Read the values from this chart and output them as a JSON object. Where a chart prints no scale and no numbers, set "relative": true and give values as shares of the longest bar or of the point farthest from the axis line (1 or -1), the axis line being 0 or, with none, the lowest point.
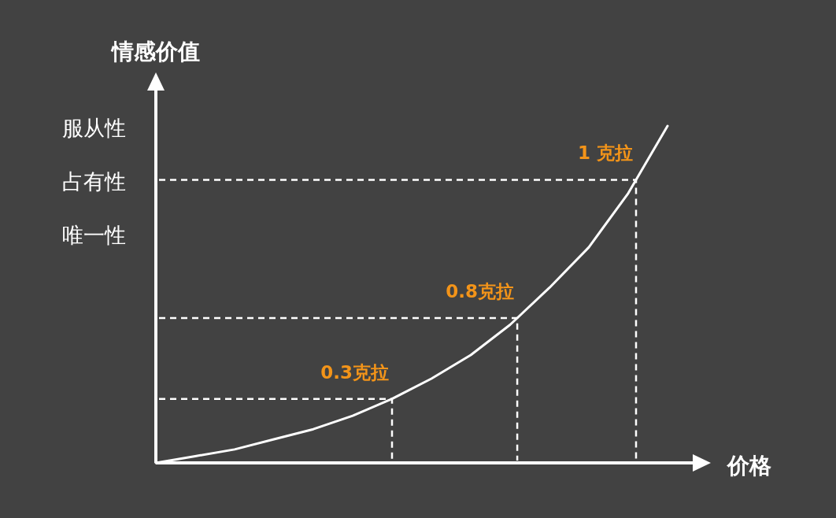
{
  "chart_data": {
    "type": "line",
    "relative": true,
    "xlabel": "价格",
    "ylabel": "情感价值",
    "categories": [
      null,
      null,
      null,
      null,
      null,
      null,
      null,
      null,
      null,
      null,
      null,
      null,
      null,
      null
    ],
    "series": [
      {
        "color": "#ffffff",
        "values": [
          0,
          0.02,
          0.04,
          0.07,
          0.1,
          0.14,
          0.19,
          0.25,
          0.32,
          0.41,
          0.52,
          0.64,
          0.8,
          1.0
        ]
      }
    ],
    "annotations": [
      "服从性",
      "占有性",
      "唯一性"
    ],
    "ref_lines": [
      {
        "axis": "y",
        "value": 0.19,
        "label": "0.3克拉",
        "line_style": "dashed"
      },
      {
        "axis": "y",
        "value": 0.43,
        "label": "0.8克拉",
        "line_style": "dashed"
      },
      {
        "axis": "y",
        "value": 0.84,
        "label": "1 克拉",
        "line_style": "dashed"
      }
    ],
    "line_style": "solid"
  }
}
